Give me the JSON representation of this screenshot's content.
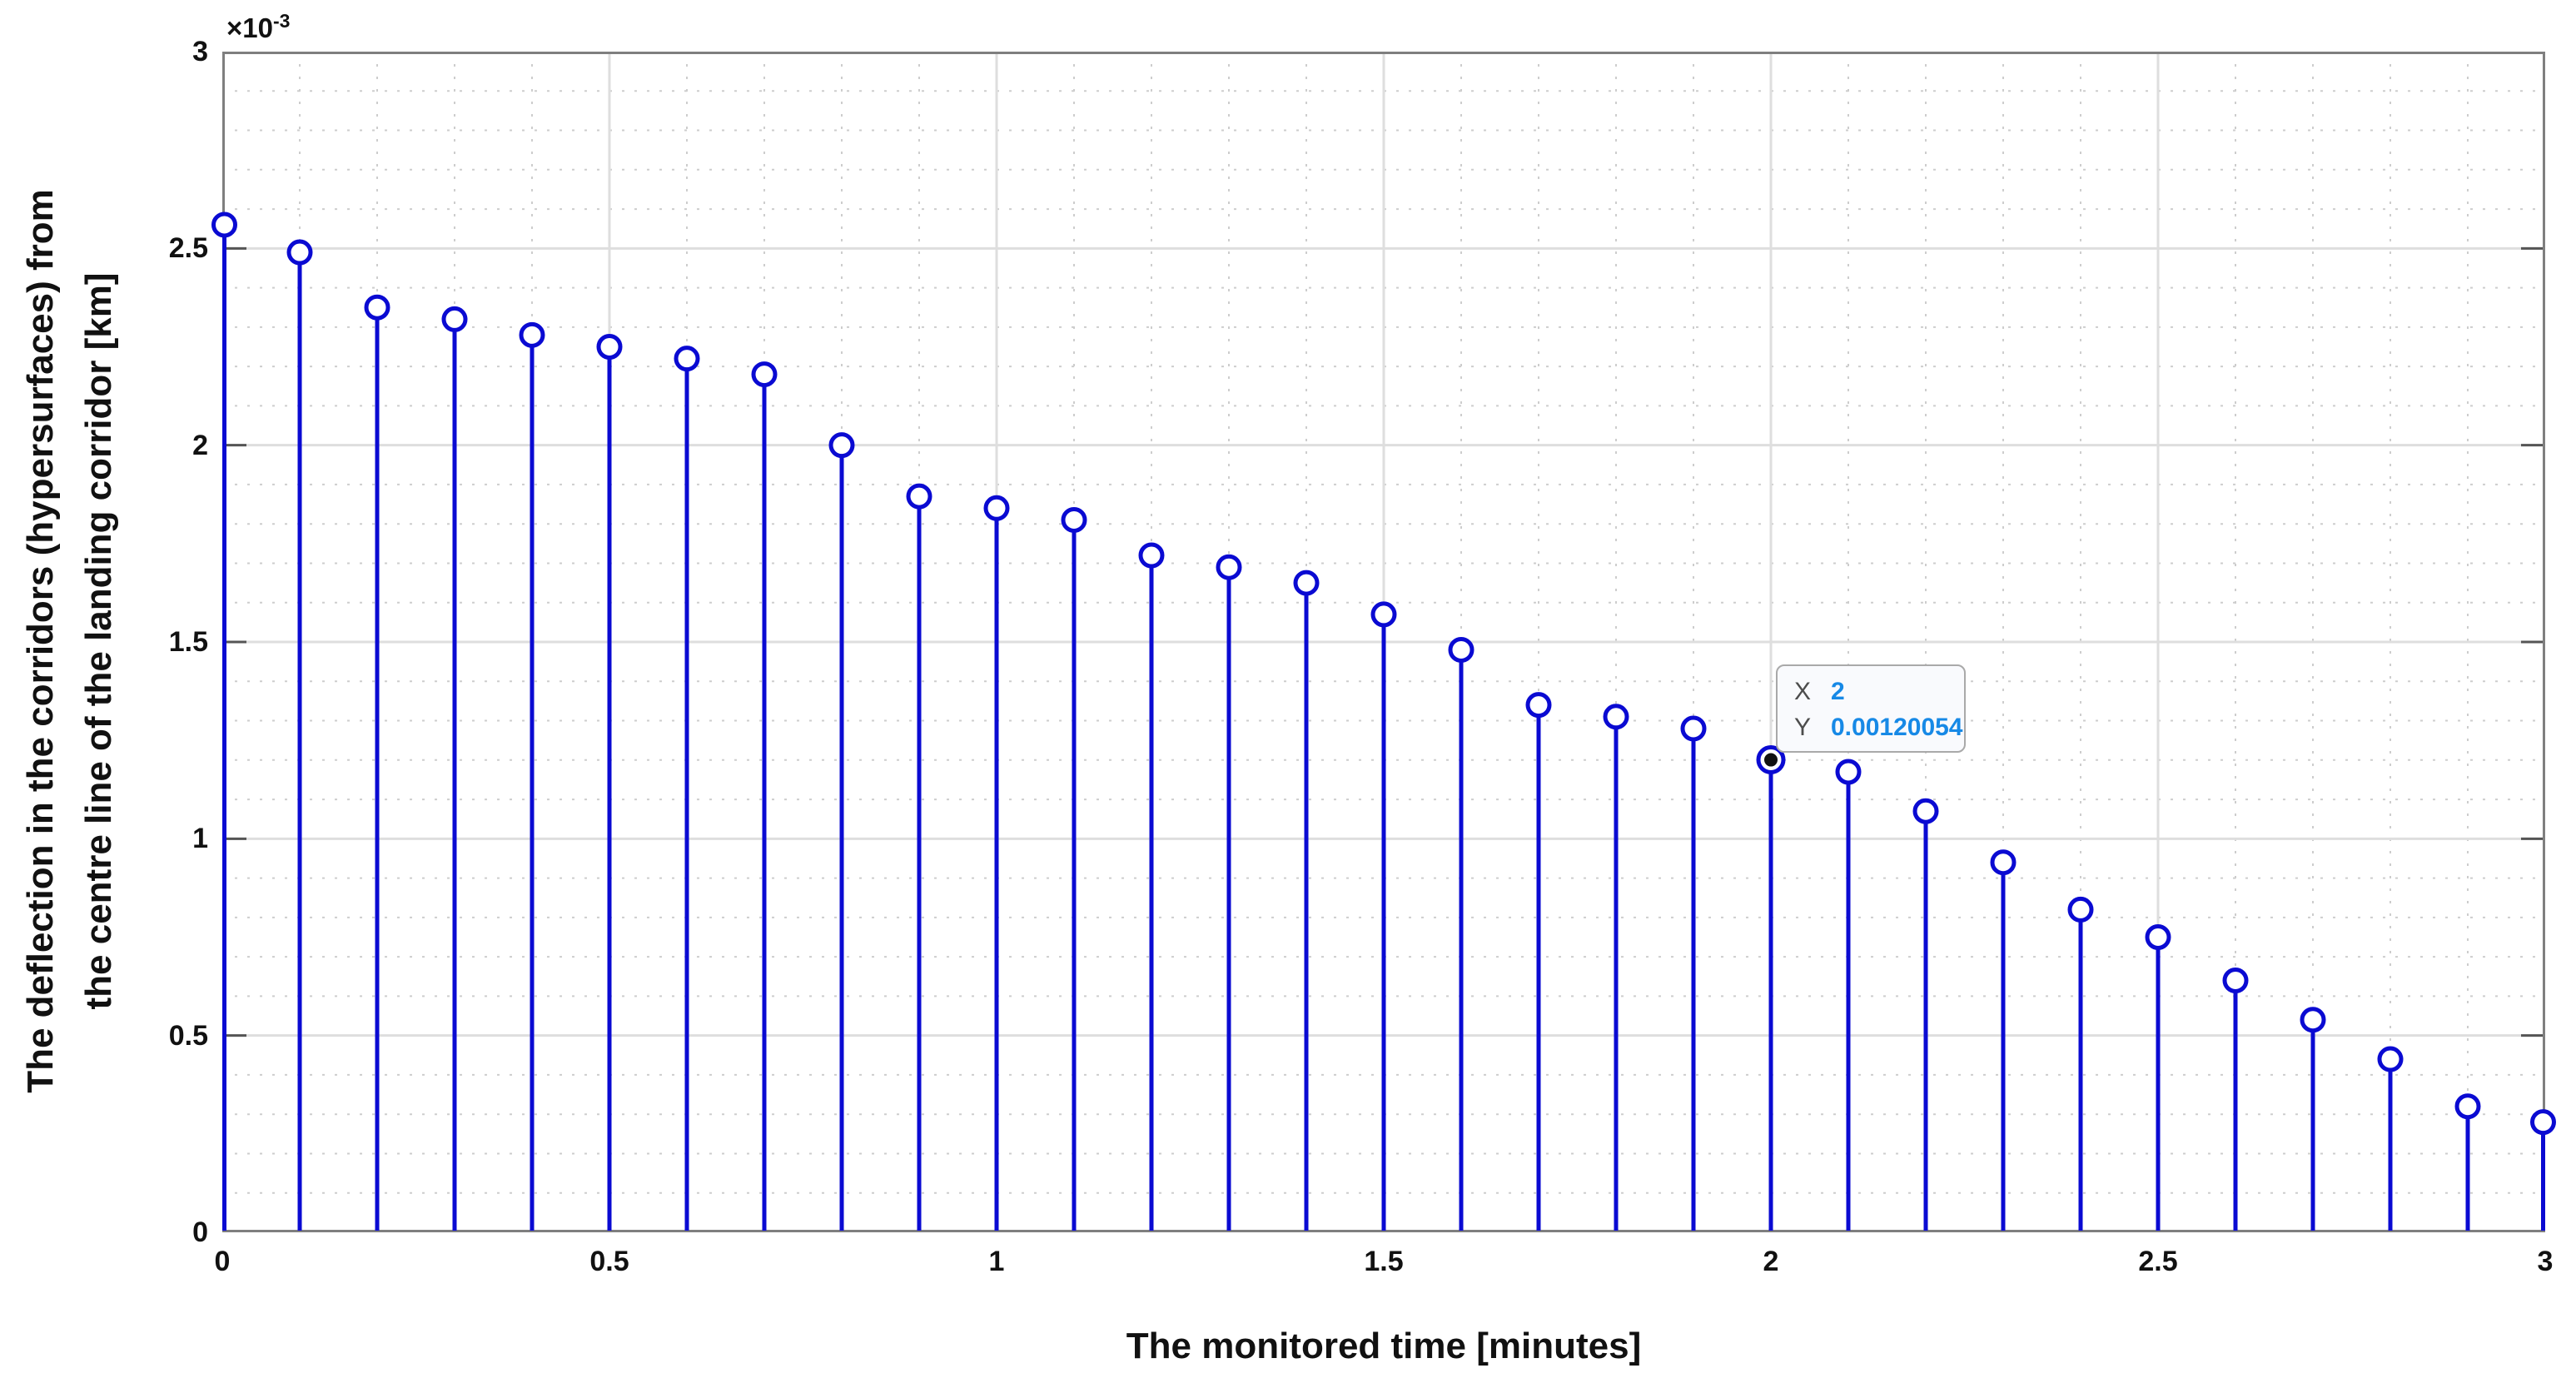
{
  "chart_data": {
    "type": "stem",
    "xlabel": "The monitored time [minutes]",
    "ylabel_line1": "The deflection in the corridors (hypersurfaces) from",
    "ylabel_line2": "the centre line of the landing corridor [km]",
    "y_exp_base": "×10",
    "y_exp_power": "-3",
    "xlim": [
      0,
      3
    ],
    "ylim": [
      0,
      0.003
    ],
    "x_ticks": [
      "0",
      "0.5",
      "1",
      "1.5",
      "2",
      "2.5",
      "3"
    ],
    "y_ticks": [
      "0",
      "0.5",
      "1",
      "1.5",
      "2",
      "2.5",
      "3"
    ],
    "grid": "on",
    "minor_grid": "on",
    "x": [
      0,
      0.1,
      0.2,
      0.3,
      0.4,
      0.5,
      0.6,
      0.7,
      0.8,
      0.9,
      1.0,
      1.1,
      1.2,
      1.3,
      1.4,
      1.5,
      1.6,
      1.7,
      1.8,
      1.9,
      2.0,
      2.1,
      2.2,
      2.3,
      2.4,
      2.5,
      2.6,
      2.7,
      2.8,
      2.9,
      3.0
    ],
    "y": [
      0.00256,
      0.00249,
      0.00235,
      0.00232,
      0.00228,
      0.00225,
      0.00222,
      0.00218,
      0.002,
      0.00187,
      0.00184,
      0.00181,
      0.00172,
      0.00169,
      0.00165,
      0.00157,
      0.00148,
      0.00134,
      0.00131,
      0.00128,
      0.00120054,
      0.00117,
      0.00107,
      0.00094,
      0.00082,
      0.00075,
      0.00064,
      0.00054,
      0.00044,
      0.00032,
      0.00028
    ],
    "selected_index": 20,
    "datatip": {
      "x_label": "X",
      "x_value": "2",
      "y_label": "Y",
      "y_value": "0.00120054",
      "point_x": 2,
      "point_y": 0.00120054
    },
    "colors": {
      "stem": "#0a0ad2",
      "marker_fill": "#ffffff",
      "selected_dot": "#111111",
      "grid_major": "#dedede",
      "grid_minor": "#cdcdcd",
      "axis_box": "#7f7f7f",
      "tick_mark": "#555555",
      "text": "#111111",
      "datatip_value": "#1789e6",
      "datatip_label": "#4d4d4d",
      "datatip_bg": "#f9fafd",
      "datatip_border": "#a9a9a9"
    }
  }
}
